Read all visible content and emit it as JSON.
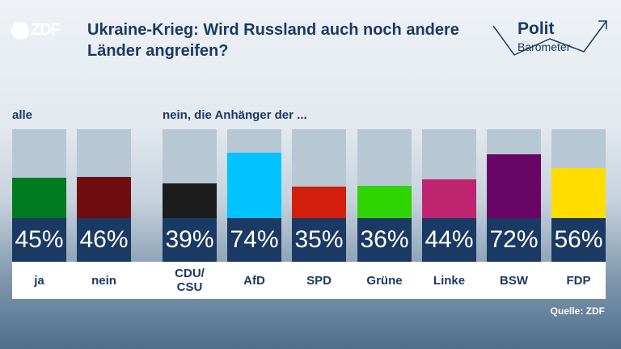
{
  "header": {
    "title": "Ukraine-Krieg: Wird Russland auch noch andere Länder angreifen?",
    "logo_text": "ZDF",
    "brand_line1": "Polit",
    "brand_line2": "Barometer"
  },
  "sections": {
    "all_label": "alle",
    "party_label": "nein, die Anhänger der ..."
  },
  "source": "Quelle: ZDF",
  "chart_data": {
    "type": "bar",
    "title": "Ukraine-Krieg: Wird Russland auch noch andere Länder angreifen?",
    "ylim": [
      0,
      100
    ],
    "unit": "%",
    "categories": [
      "ja",
      "nein",
      "CDU/ CSU",
      "AfD",
      "SPD",
      "Grüne",
      "Linke",
      "BSW",
      "FDP"
    ],
    "values": [
      45,
      46,
      39,
      74,
      35,
      36,
      44,
      72,
      56
    ],
    "value_labels": [
      "45%",
      "46%",
      "39%",
      "74%",
      "35%",
      "36%",
      "44%",
      "72%",
      "56%"
    ],
    "colors": [
      "#007a1e",
      "#6e0d10",
      "#1c1c1c",
      "#00c3ff",
      "#d11f0b",
      "#2fd400",
      "#c0236f",
      "#6a0568",
      "#ffdd00"
    ]
  }
}
